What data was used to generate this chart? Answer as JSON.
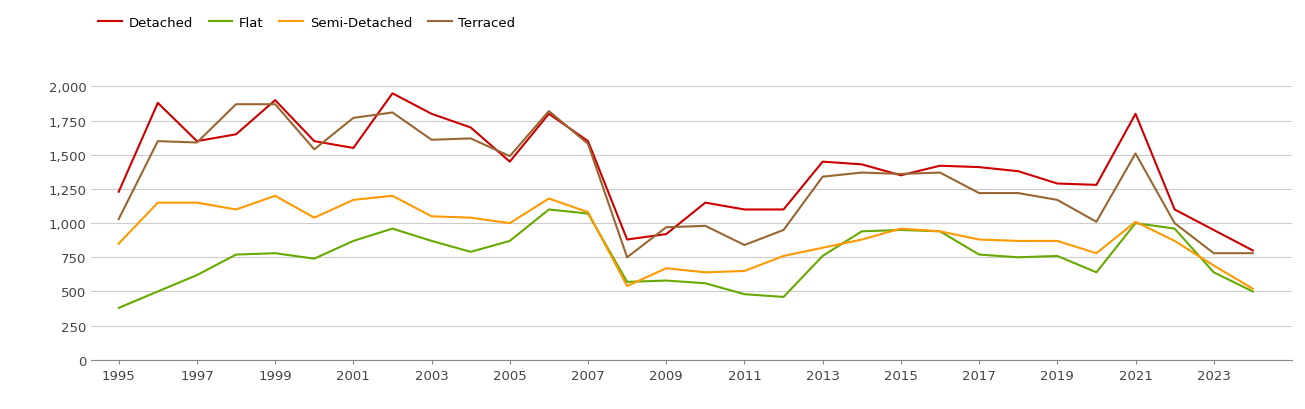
{
  "years": [
    1995,
    1996,
    1997,
    1998,
    1999,
    2000,
    2001,
    2002,
    2003,
    2004,
    2005,
    2006,
    2007,
    2008,
    2009,
    2010,
    2011,
    2012,
    2013,
    2014,
    2015,
    2016,
    2017,
    2018,
    2019,
    2020,
    2021,
    2022,
    2023,
    2024
  ],
  "detached": [
    1230,
    1880,
    1600,
    1650,
    1900,
    1600,
    1550,
    1950,
    1800,
    1700,
    1450,
    1800,
    1600,
    880,
    920,
    1150,
    1100,
    1100,
    1450,
    1430,
    1350,
    1420,
    1410,
    1380,
    1290,
    1280,
    1800,
    1100,
    950,
    800
  ],
  "flat": [
    380,
    500,
    620,
    770,
    780,
    740,
    870,
    960,
    870,
    790,
    870,
    1100,
    1070,
    570,
    580,
    560,
    480,
    460,
    760,
    940,
    950,
    940,
    770,
    750,
    760,
    640,
    1000,
    960,
    640,
    500
  ],
  "semi_detached": [
    850,
    1150,
    1150,
    1100,
    1200,
    1040,
    1170,
    1200,
    1050,
    1040,
    1000,
    1180,
    1080,
    540,
    670,
    640,
    650,
    760,
    820,
    880,
    960,
    940,
    880,
    870,
    870,
    780,
    1010,
    870,
    690,
    520
  ],
  "terraced": [
    1030,
    1600,
    1590,
    1870,
    1870,
    1540,
    1770,
    1810,
    1610,
    1620,
    1490,
    1820,
    1580,
    750,
    970,
    980,
    840,
    950,
    1340,
    1370,
    1360,
    1370,
    1220,
    1220,
    1170,
    1010,
    1510,
    1000,
    780,
    780
  ],
  "detached_color": "#cc0000",
  "flat_color": "#66aa00",
  "semi_detached_color": "#ff9900",
  "terraced_color": "#996633",
  "ylim": [
    0,
    2100
  ],
  "yticks": [
    0,
    250,
    500,
    750,
    1000,
    1250,
    1500,
    1750,
    2000
  ],
  "ytick_labels": [
    "0",
    "250",
    "500",
    "750",
    "1,000",
    "1,250",
    "1,500",
    "1,750",
    "2,000"
  ],
  "xticks": [
    1995,
    1997,
    1999,
    2001,
    2003,
    2005,
    2007,
    2009,
    2011,
    2013,
    2015,
    2017,
    2019,
    2021,
    2023
  ],
  "legend_labels": [
    "Detached",
    "Flat",
    "Semi-Detached",
    "Terraced"
  ],
  "line_width": 1.5,
  "background_color": "#ffffff",
  "grid_color": "#cccccc"
}
